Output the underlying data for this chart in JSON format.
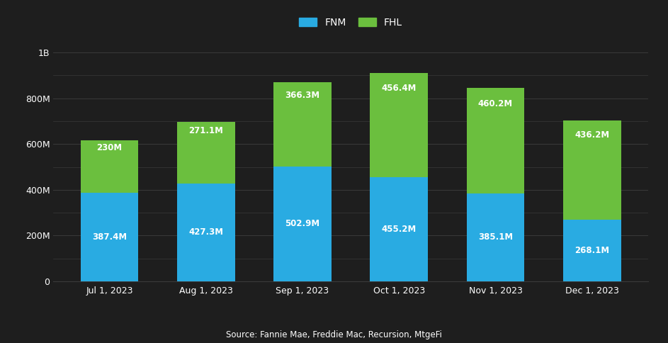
{
  "categories": [
    "Jul 1, 2023",
    "Aug 1, 2023",
    "Sep 1, 2023",
    "Oct 1, 2023",
    "Nov 1, 2023",
    "Dec 1, 2023"
  ],
  "fnm_values": [
    387.4,
    427.3,
    502.9,
    455.2,
    385.1,
    268.1
  ],
  "fhl_values": [
    230.0,
    271.1,
    366.3,
    456.4,
    460.2,
    436.2
  ],
  "fnm_labels": [
    "387.4M",
    "427.3M",
    "502.9M",
    "455.2M",
    "385.1M",
    "268.1M"
  ],
  "fhl_labels": [
    "230M",
    "271.1M",
    "366.3M",
    "456.4M",
    "460.2M",
    "436.2M"
  ],
  "fnm_color": "#29ABE2",
  "fhl_color": "#6BBF3E",
  "background_color": "#1e1e1e",
  "text_color": "#ffffff",
  "grid_color": "#3a3a3a",
  "major_ytick_labels": [
    "0",
    "200M",
    "400M",
    "600M",
    "800M",
    "1B"
  ],
  "major_ytick_values": [
    0,
    200,
    400,
    600,
    800,
    1000
  ],
  "minor_ytick_values": [
    100,
    300,
    500,
    700,
    900
  ],
  "ylim": [
    0,
    1050
  ],
  "legend_labels": [
    "FNM",
    "FHL"
  ],
  "source_text": "Source: Fannie Mae, Freddie Mac, Recursion, MtgeFi",
  "bar_width": 0.6
}
